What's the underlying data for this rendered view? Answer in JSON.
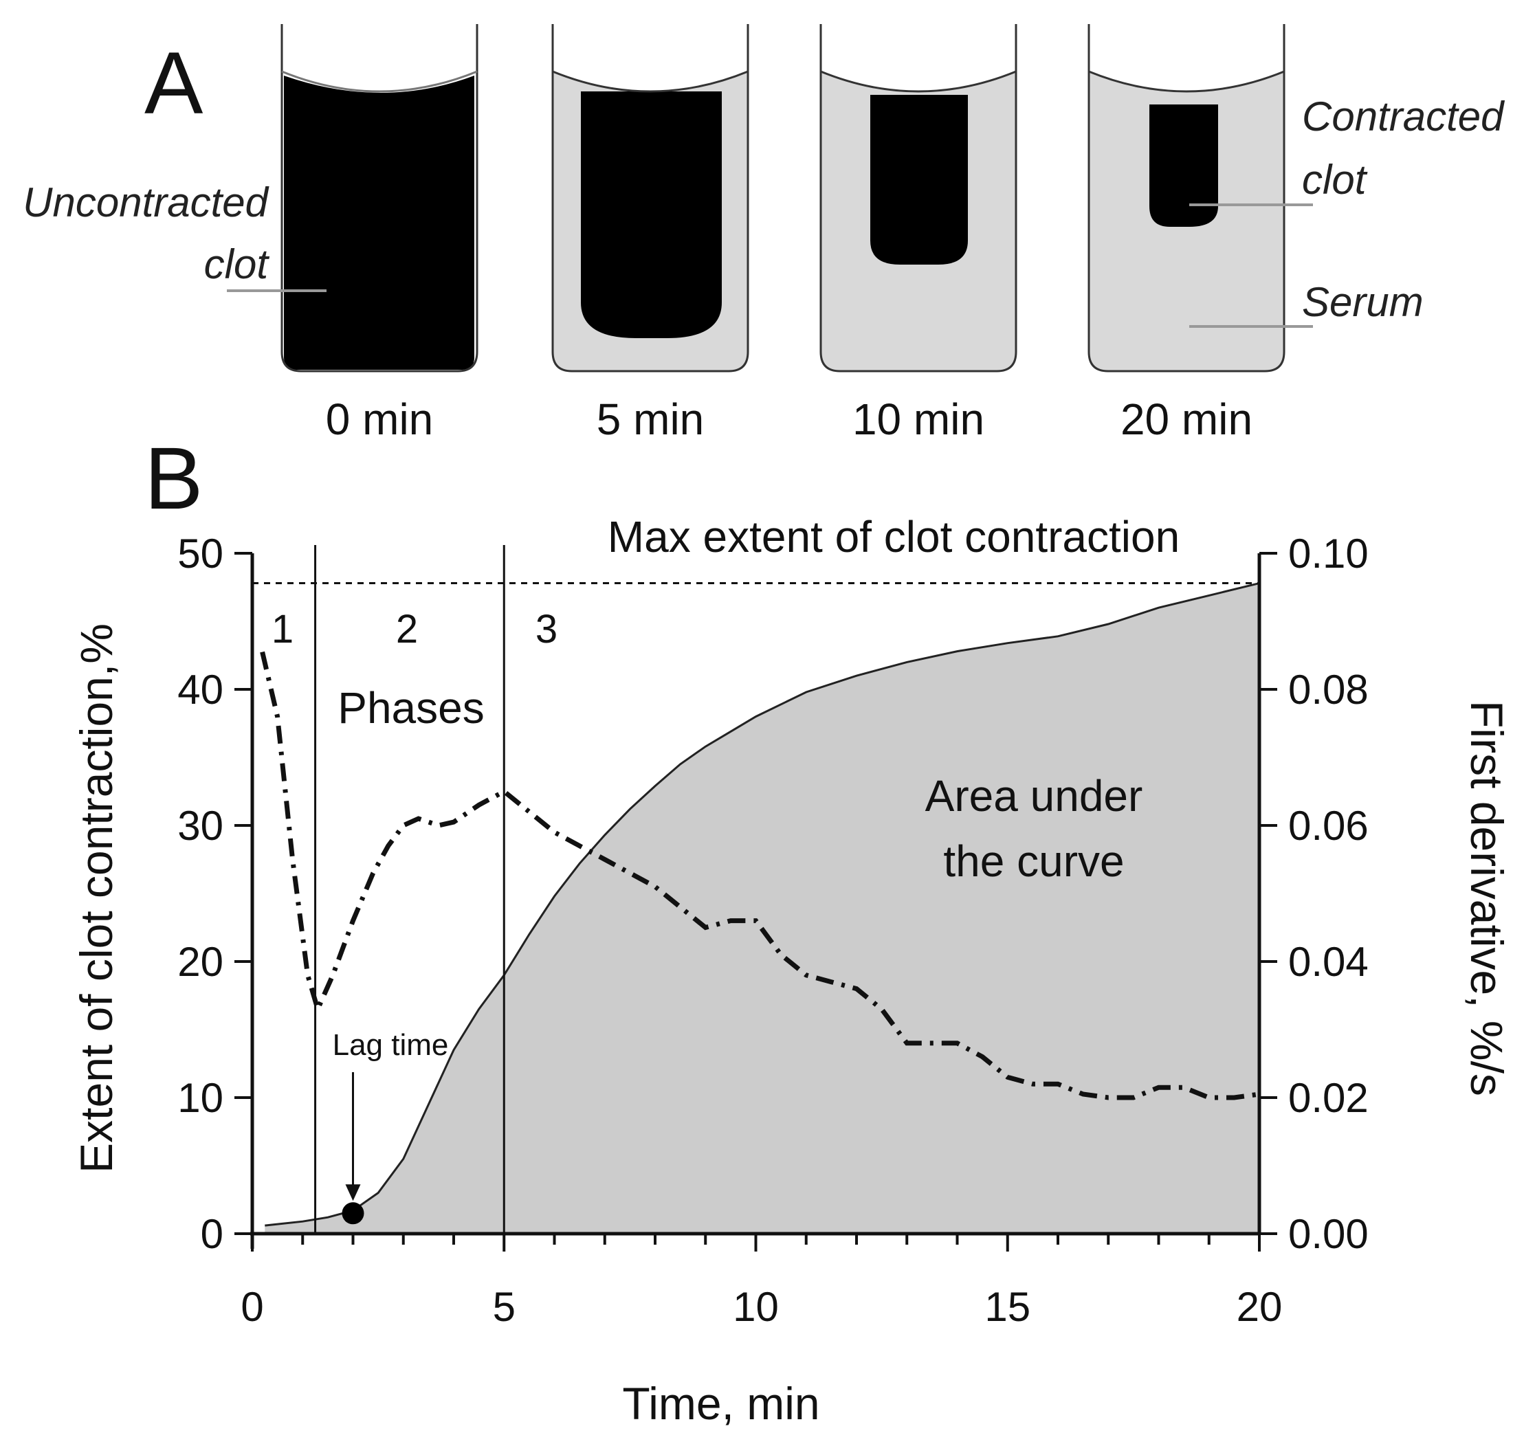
{
  "panel_a": {
    "label": "A",
    "tubes": [
      {
        "time_label": "0 min"
      },
      {
        "time_label": "5 min"
      },
      {
        "time_label": "10 min"
      },
      {
        "time_label": "20 min"
      }
    ],
    "labels": {
      "uncontracted_line1": "Uncontracted",
      "uncontracted_line2": "clot",
      "contracted_line1": "Contracted",
      "contracted_line2": "clot",
      "serum": "Serum"
    },
    "colors": {
      "clot": "#000000",
      "serum": "#d9d9d9",
      "tube_outline": "#333333",
      "leader": "#999999"
    }
  },
  "panel_b": {
    "label": "B",
    "annotations": {
      "max_extent": "Max extent of clot contraction",
      "phases": "Phases",
      "phase_numbers": [
        "1",
        "2",
        "3"
      ],
      "lag_time": "Lag time",
      "auc_line1": "Area under",
      "auc_line2": "the curve"
    },
    "colors": {
      "area_fill": "#cccccc",
      "line": "#111111"
    }
  },
  "chart_data": {
    "type": "area",
    "xlabel": "Time, min",
    "ylabel": "Extent of clot contraction,%",
    "y2label": "First derivative, %/s",
    "xlim": [
      0,
      20
    ],
    "ylim": [
      0,
      50
    ],
    "y2lim": [
      0,
      0.1
    ],
    "xticks": [
      0,
      5,
      10,
      15,
      20
    ],
    "yticks": [
      0,
      10,
      20,
      30,
      40,
      50
    ],
    "y2ticks": [
      "0.00",
      "0.02",
      "0.04",
      "0.06",
      "0.08",
      "0.10"
    ],
    "max_extent": 47.8,
    "phase_boundaries": [
      1.25,
      5.0
    ],
    "lag_time": {
      "x": 2.0,
      "y": 1.5
    },
    "series": [
      {
        "axis": "left",
        "style": "solid, filled area",
        "x": [
          0.25,
          1.0,
          1.5,
          2.0,
          2.5,
          3.0,
          3.5,
          4.0,
          4.5,
          5.0,
          5.5,
          6.0,
          6.5,
          7.0,
          7.5,
          8.0,
          8.5,
          9.0,
          9.5,
          10.0,
          11.0,
          12.0,
          13.0,
          14.0,
          15.0,
          16.0,
          17.0,
          18.0,
          19.0,
          20.0
        ],
        "y": [
          0.6,
          0.9,
          1.2,
          1.7,
          3.0,
          5.5,
          9.5,
          13.5,
          16.5,
          19.0,
          22.0,
          24.8,
          27.2,
          29.3,
          31.2,
          32.9,
          34.5,
          35.8,
          36.9,
          38.0,
          39.8,
          41.0,
          42.0,
          42.8,
          43.4,
          43.9,
          44.8,
          46.0,
          46.9,
          47.8
        ]
      },
      {
        "axis": "right",
        "style": "dash-dot",
        "x": [
          0.2,
          0.5,
          0.8,
          1.1,
          1.3,
          1.6,
          2.0,
          2.4,
          2.7,
          3.0,
          3.3,
          3.7,
          4.0,
          4.5,
          5.0,
          5.5,
          6.0,
          6.5,
          7.0,
          7.5,
          8.0,
          8.5,
          9.0,
          9.5,
          10.0,
          10.5,
          11.0,
          11.5,
          12.0,
          12.5,
          13.0,
          13.5,
          14.0,
          14.5,
          15.0,
          15.5,
          16.0,
          16.5,
          17.0,
          17.5,
          18.0,
          18.5,
          19.0,
          19.5,
          20.0
        ],
        "y": [
          0.0855,
          0.076,
          0.055,
          0.038,
          0.033,
          0.038,
          0.046,
          0.053,
          0.057,
          0.06,
          0.061,
          0.06,
          0.0605,
          0.063,
          0.065,
          0.062,
          0.059,
          0.057,
          0.055,
          0.053,
          0.051,
          0.048,
          0.045,
          0.046,
          0.046,
          0.041,
          0.038,
          0.037,
          0.036,
          0.033,
          0.028,
          0.028,
          0.028,
          0.026,
          0.023,
          0.022,
          0.022,
          0.0205,
          0.02,
          0.02,
          0.0215,
          0.0215,
          0.02,
          0.02,
          0.0205
        ]
      }
    ]
  }
}
